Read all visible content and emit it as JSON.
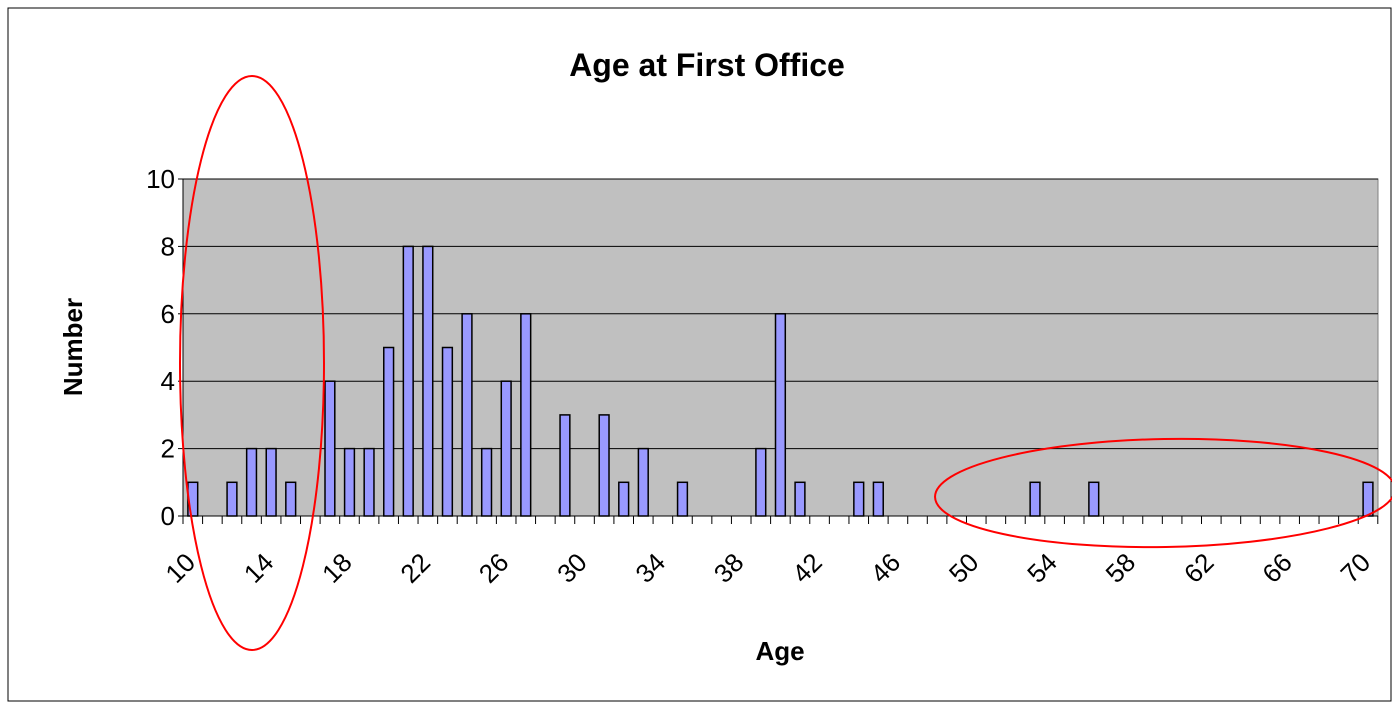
{
  "chart_data": {
    "type": "bar",
    "title": "Age at First Office",
    "x_label": "Age",
    "y_label": "Number",
    "categories": [
      "10",
      null,
      null,
      null,
      "14",
      null,
      null,
      null,
      "18",
      null,
      null,
      null,
      "22",
      null,
      null,
      null,
      "26",
      null,
      null,
      null,
      "30",
      null,
      null,
      null,
      "34",
      null,
      null,
      null,
      "38",
      null,
      null,
      null,
      "42",
      null,
      null,
      null,
      "46",
      null,
      null,
      null,
      "50",
      null,
      null,
      null,
      "54",
      null,
      null,
      null,
      "58",
      null,
      null,
      null,
      "62",
      null,
      null,
      null,
      "66",
      null,
      null,
      null,
      "70"
    ],
    "values": [
      1,
      0,
      1,
      2,
      2,
      1,
      0,
      4,
      2,
      2,
      5,
      8,
      8,
      5,
      6,
      2,
      4,
      6,
      0,
      3,
      0,
      3,
      1,
      2,
      0,
      1,
      0,
      0,
      0,
      2,
      6,
      1,
      0,
      0,
      1,
      1,
      0,
      0,
      0,
      0,
      0,
      0,
      0,
      1,
      0,
      0,
      1,
      0,
      0,
      0,
      0,
      0,
      0,
      0,
      0,
      0,
      0,
      0,
      0,
      0,
      1
    ],
    "color": "#9999ff",
    "ylim": [
      0,
      10
    ],
    "yticks": [
      0,
      2,
      4,
      6,
      8,
      10
    ],
    "grid": true
  }
}
